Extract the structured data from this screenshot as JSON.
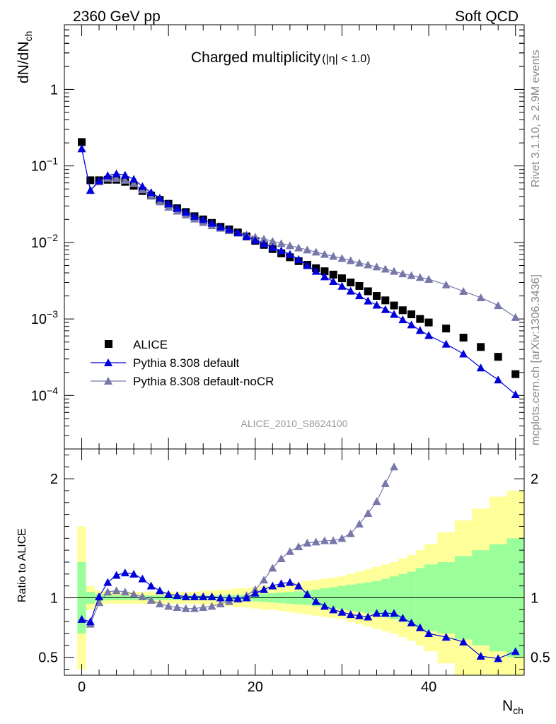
{
  "header": {
    "left": "2360 GeV pp",
    "right": "Soft QCD"
  },
  "side_labels": {
    "upper": "Rivet 3.1.10, ≥ 2.9M events",
    "lower": "mcplots.cern.ch [arXiv:1306.3436]"
  },
  "chart_data": {
    "type": "scatter",
    "title": "Charged multiplicity",
    "title_suffix": "(|η| < 1.0)",
    "analysis_tag": "ALICE_2010_S8624100",
    "main_panel": {
      "ylabel": "dN/dN",
      "ylabel_sub": "ch",
      "yscale": "log",
      "ylim": [
        2e-05,
        7
      ],
      "yticks": [
        {
          "value": 1,
          "base": "1",
          "exp": ""
        },
        {
          "value": 0.1,
          "base": "10",
          "exp": "−1"
        },
        {
          "value": 0.01,
          "base": "10",
          "exp": "−2"
        },
        {
          "value": 0.001,
          "base": "10",
          "exp": "−3"
        },
        {
          "value": 0.0001,
          "base": "10",
          "exp": "−4"
        }
      ]
    },
    "ratio_panel": {
      "ylabel": "Ratio to ALICE",
      "ylim": [
        0.35,
        2.25
      ],
      "yticks": [
        "0.5",
        "1",
        "2"
      ]
    },
    "xaxis": {
      "label": "N",
      "label_sub": "ch",
      "xlim": [
        -2,
        51
      ],
      "ticks": [
        "0",
        "20",
        "40"
      ]
    },
    "legend": {
      "position": "lower-left",
      "entries": [
        "ALICE",
        "Pythia 8.308 default",
        "Pythia 8.308 default-noCR"
      ]
    },
    "colors": {
      "data": "#000000",
      "pythia_default": "#0000dd",
      "pythia_nocr": "#7777aa",
      "band_stat": "#9aff9a",
      "band_total": "#ffff99"
    },
    "series": [
      {
        "name": "ALICE",
        "x": [
          0,
          1,
          2,
          3,
          4,
          5,
          6,
          7,
          8,
          9,
          10,
          11,
          12,
          13,
          14,
          15,
          16,
          17,
          18,
          19,
          20,
          21,
          22,
          23,
          24,
          25,
          26,
          27,
          28,
          29,
          30,
          31,
          32,
          33,
          34,
          35,
          36,
          37,
          38,
          39,
          40,
          42,
          44,
          46,
          48,
          50
        ],
        "values": [
          0.205,
          0.065,
          0.065,
          0.066,
          0.066,
          0.062,
          0.055,
          0.047,
          0.041,
          0.036,
          0.032,
          0.028,
          0.025,
          0.022,
          0.02,
          0.018,
          0.016,
          0.0148,
          0.0135,
          0.012,
          0.0105,
          0.0093,
          0.0082,
          0.0072,
          0.0064,
          0.0057,
          0.0051,
          0.0046,
          0.0042,
          0.0038,
          0.0034,
          0.003,
          0.0027,
          0.0023,
          0.002,
          0.00175,
          0.0015,
          0.0013,
          0.00115,
          0.001,
          0.0009,
          0.00075,
          0.00057,
          0.00043,
          0.00032,
          0.00019
        ]
      },
      {
        "name": "Pythia 8.308 default",
        "x": [
          0,
          1,
          2,
          3,
          4,
          5,
          6,
          7,
          8,
          9,
          10,
          11,
          12,
          13,
          14,
          15,
          16,
          17,
          18,
          19,
          20,
          21,
          22,
          23,
          24,
          25,
          26,
          27,
          28,
          29,
          30,
          31,
          32,
          33,
          34,
          35,
          36,
          37,
          38,
          39,
          40,
          42,
          44,
          46,
          48,
          50
        ],
        "values": [
          0.168,
          0.048,
          0.064,
          0.075,
          0.079,
          0.076,
          0.067,
          0.054,
          0.045,
          0.038,
          0.032,
          0.028,
          0.025,
          0.022,
          0.02,
          0.0179,
          0.016,
          0.0148,
          0.0134,
          0.012,
          0.0107,
          0.0096,
          0.0086,
          0.0078,
          0.007,
          0.006,
          0.005,
          0.0042,
          0.00357,
          0.0031,
          0.00268,
          0.00232,
          0.00202,
          0.00172,
          0.00152,
          0.00133,
          0.00115,
          0.00098,
          0.00084,
          0.00071,
          0.00061,
          0.00047,
          0.00035,
          0.00023,
          0.00016,
          0.000103
        ]
      },
      {
        "name": "Pythia 8.308 default-noCR",
        "x": [
          0,
          1,
          2,
          3,
          4,
          5,
          6,
          7,
          8,
          9,
          10,
          11,
          12,
          13,
          14,
          15,
          16,
          17,
          18,
          19,
          20,
          21,
          22,
          23,
          24,
          25,
          26,
          27,
          28,
          29,
          30,
          31,
          32,
          33,
          34,
          35,
          36,
          37,
          38,
          39,
          40,
          42,
          44,
          46,
          48,
          50
        ],
        "values": [
          0.168,
          0.048,
          0.062,
          0.069,
          0.069,
          0.065,
          0.059,
          0.049,
          0.041,
          0.034,
          0.029,
          0.0257,
          0.023,
          0.0203,
          0.0183,
          0.0166,
          0.0154,
          0.0143,
          0.0134,
          0.0126,
          0.0118,
          0.0111,
          0.0104,
          0.0097,
          0.0091,
          0.0085,
          0.008,
          0.0075,
          0.007,
          0.0066,
          0.0062,
          0.0058,
          0.0054,
          0.0051,
          0.0048,
          0.0045,
          0.0042,
          0.0039,
          0.0037,
          0.0035,
          0.0033,
          0.0028,
          0.0023,
          0.0019,
          0.0015,
          0.00105
        ]
      }
    ],
    "ratio_series": [
      {
        "name": "Pythia 8.308 default",
        "x": [
          0,
          1,
          2,
          3,
          4,
          5,
          6,
          7,
          8,
          9,
          10,
          11,
          12,
          13,
          14,
          15,
          16,
          17,
          18,
          19,
          20,
          21,
          22,
          23,
          24,
          25,
          26,
          27,
          28,
          29,
          30,
          31,
          32,
          33,
          34,
          35,
          36,
          37,
          38,
          39,
          40,
          42,
          44,
          46,
          48,
          50
        ],
        "values": [
          0.82,
          0.8,
          1.01,
          1.13,
          1.19,
          1.21,
          1.2,
          1.16,
          1.1,
          1.06,
          1.03,
          1.02,
          1.01,
          1.01,
          1.01,
          1.01,
          1.0,
          1.0,
          0.995,
          1.0,
          1.04,
          1.07,
          1.1,
          1.12,
          1.13,
          1.1,
          1.03,
          0.97,
          0.93,
          0.9,
          0.88,
          0.86,
          0.85,
          0.84,
          0.87,
          0.87,
          0.87,
          0.83,
          0.79,
          0.75,
          0.7,
          0.67,
          0.63,
          0.51,
          0.49,
          0.55
        ]
      },
      {
        "name": "Pythia 8.308 default-noCR",
        "x": [
          0,
          1,
          2,
          3,
          4,
          5,
          6,
          7,
          8,
          9,
          10,
          11,
          12,
          13,
          14,
          15,
          16,
          17,
          18,
          19,
          20,
          21,
          22,
          23,
          24,
          25,
          26,
          27,
          28,
          29,
          30,
          31,
          32,
          33,
          34,
          35,
          36
        ],
        "values": [
          0.82,
          0.78,
          0.96,
          1.05,
          1.06,
          1.05,
          1.03,
          1.01,
          0.98,
          0.95,
          0.93,
          0.92,
          0.91,
          0.91,
          0.92,
          0.93,
          0.95,
          0.97,
          0.99,
          1.02,
          1.07,
          1.15,
          1.25,
          1.33,
          1.39,
          1.43,
          1.46,
          1.47,
          1.48,
          1.48,
          1.5,
          1.54,
          1.62,
          1.71,
          1.81,
          1.96,
          2.1
        ]
      }
    ],
    "bands": {
      "edges": [
        -0.5,
        0.5,
        1.5,
        2.5,
        3.5,
        4.5,
        5.5,
        6.5,
        7.5,
        8.5,
        9.5,
        10.5,
        11.5,
        12.5,
        13.5,
        14.5,
        15.5,
        16.5,
        17.5,
        18.5,
        19.5,
        20.5,
        21.5,
        22.5,
        23.5,
        24.5,
        25.5,
        26.5,
        27.5,
        28.5,
        29.5,
        30.5,
        31.5,
        32.5,
        33.5,
        34.5,
        35.5,
        36.5,
        37.5,
        38.5,
        39.5,
        41,
        43,
        45,
        47,
        49,
        51
      ],
      "stat": [
        0.3,
        0.05,
        0.03,
        0.02,
        0.02,
        0.02,
        0.02,
        0.02,
        0.02,
        0.02,
        0.02,
        0.02,
        0.02,
        0.02,
        0.02,
        0.02,
        0.02,
        0.025,
        0.025,
        0.025,
        0.03,
        0.035,
        0.04,
        0.045,
        0.05,
        0.055,
        0.06,
        0.07,
        0.08,
        0.09,
        0.1,
        0.11,
        0.12,
        0.13,
        0.14,
        0.16,
        0.18,
        0.2,
        0.22,
        0.25,
        0.28,
        0.3,
        0.35,
        0.4,
        0.45,
        0.5
      ],
      "total": [
        0.6,
        0.1,
        0.06,
        0.05,
        0.05,
        0.05,
        0.05,
        0.05,
        0.05,
        0.05,
        0.05,
        0.05,
        0.05,
        0.05,
        0.06,
        0.06,
        0.07,
        0.07,
        0.08,
        0.08,
        0.09,
        0.1,
        0.1,
        0.11,
        0.12,
        0.13,
        0.14,
        0.15,
        0.16,
        0.17,
        0.18,
        0.2,
        0.22,
        0.24,
        0.26,
        0.28,
        0.3,
        0.33,
        0.36,
        0.4,
        0.45,
        0.55,
        0.65,
        0.75,
        0.85,
        0.9
      ]
    }
  }
}
